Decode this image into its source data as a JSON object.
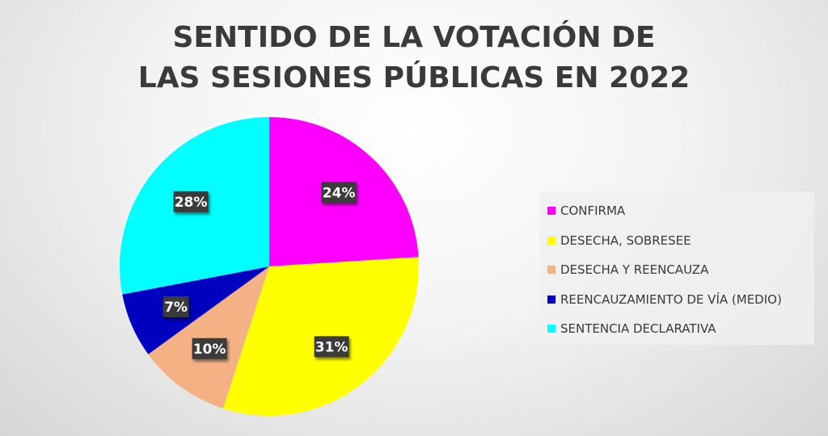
{
  "chart_data": {
    "type": "pie",
    "title": "SENTIDO DE LA VOTACIÓN DE LAS SESIONES PÚBLICAS EN 2022",
    "title_lines": [
      "SENTIDO DE LA VOTACIÓN DE",
      "LAS SESIONES PÚBLICAS EN 2022"
    ],
    "legend_position": "right",
    "slices": [
      {
        "label": "CONFIRMA",
        "value": 24,
        "display": "24%",
        "color": "#ff00ff"
      },
      {
        "label": "DESECHA, SOBRESEE",
        "value": 31,
        "display": "31%",
        "color": "#ffff00"
      },
      {
        "label": "DESECHA Y REENCAUZA",
        "value": 10,
        "display": "10%",
        "color": "#f4b183"
      },
      {
        "label": "REENCAUZAMIENTO DE VÍA (MEDIO)",
        "value": 7,
        "display": "7%",
        "color": "#0000c0"
      },
      {
        "label": "SENTENCIA DECLARATIVA",
        "value": 28,
        "display": "28%",
        "color": "#00ffff"
      }
    ]
  }
}
